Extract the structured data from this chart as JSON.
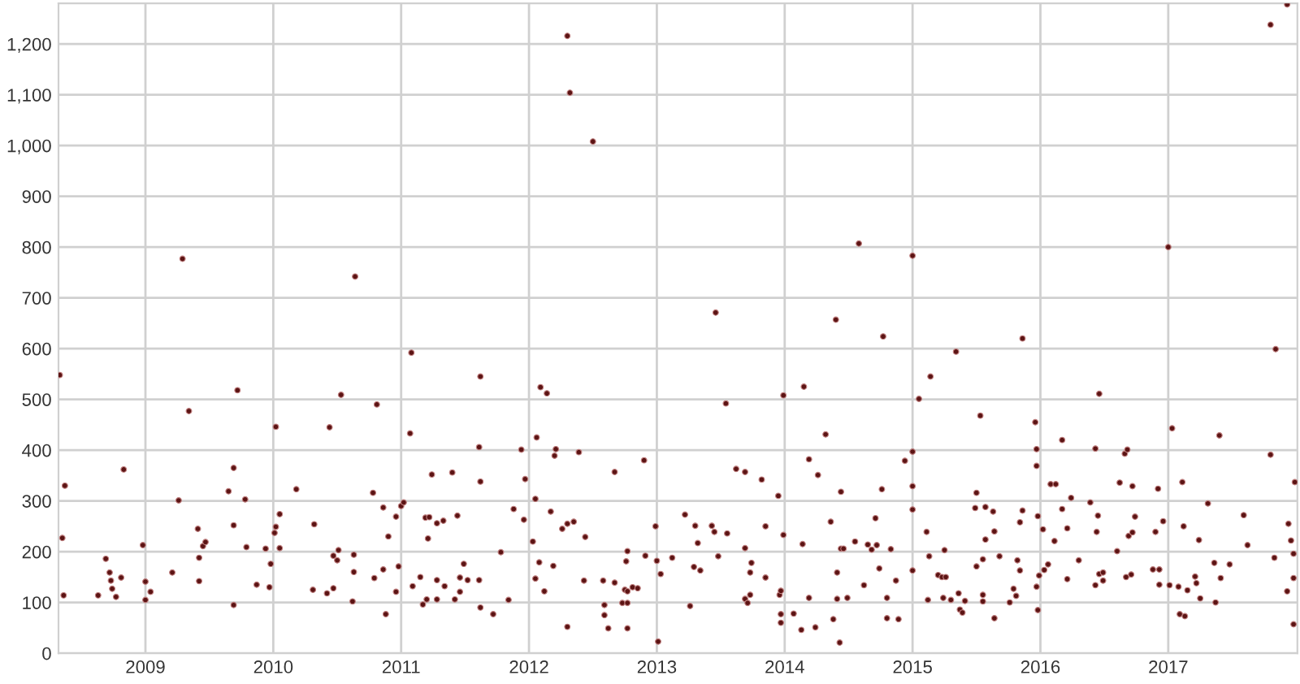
{
  "chart_data": {
    "type": "scatter",
    "marker": "circle",
    "grid": true,
    "color": "#5c1414",
    "x": [
      2008.33,
      2008.37,
      2008.35,
      2008.36,
      2008.63,
      2008.69,
      2008.72,
      2008.73,
      2008.74,
      2008.77,
      2008.81,
      2008.83,
      2008.98,
      2009.0,
      2009.0,
      2009.04,
      2009.21,
      2009.26,
      2009.29,
      2009.34,
      2009.41,
      2009.42,
      2009.42,
      2009.45,
      2009.47,
      2009.65,
      2009.69,
      2009.69,
      2009.69,
      2009.72,
      2009.78,
      2009.79,
      2009.87,
      2009.94,
      2009.97,
      2009.98,
      2010.02,
      2010.01,
      2010.02,
      2010.05,
      2010.05,
      2010.18,
      2010.32,
      2010.31,
      2010.42,
      2010.44,
      2010.47,
      2010.47,
      2010.5,
      2010.51,
      2010.53,
      2010.62,
      2010.63,
      2010.63,
      2010.64,
      2010.78,
      2010.79,
      2010.81,
      2010.86,
      2010.86,
      2010.88,
      2010.9,
      2010.96,
      2010.96,
      2010.98,
      2011.0,
      2011.02,
      2011.08,
      2011.07,
      2011.09,
      2011.15,
      2011.17,
      2011.19,
      2011.2,
      2011.21,
      2011.22,
      2011.24,
      2011.28,
      2011.28,
      2011.28,
      2011.33,
      2011.34,
      2011.4,
      2011.42,
      2011.44,
      2011.46,
      2011.46,
      2011.49,
      2011.52,
      2011.61,
      2011.62,
      2011.61,
      2011.62,
      2011.62,
      2011.72,
      2011.78,
      2011.84,
      2011.88,
      2011.94,
      2011.96,
      2011.97,
      2012.03,
      2012.05,
      2012.05,
      2012.06,
      2012.08,
      2012.09,
      2012.14,
      2012.12,
      2012.17,
      2012.19,
      2012.2,
      2012.21,
      2012.26,
      2012.3,
      2012.3,
      2012.3,
      2012.32,
      2012.35,
      2012.39,
      2012.44,
      2012.43,
      2012.5,
      2012.58,
      2012.59,
      2012.59,
      2012.62,
      2012.67,
      2012.67,
      2012.73,
      2012.75,
      2012.76,
      2012.77,
      2012.77,
      2012.77,
      2012.77,
      2012.81,
      2012.85,
      2012.9,
      2012.91,
      2012.99,
      2013.0,
      2013.01,
      2013.03,
      2013.12,
      2013.22,
      2013.26,
      2013.29,
      2013.3,
      2013.32,
      2013.34,
      2013.43,
      2013.45,
      2013.46,
      2013.48,
      2013.54,
      2013.55,
      2013.62,
      2013.69,
      2013.69,
      2013.69,
      2013.71,
      2013.73,
      2013.73,
      2013.74,
      2013.82,
      2013.85,
      2013.85,
      2013.95,
      2013.96,
      2013.97,
      2013.97,
      2013.97,
      2013.99,
      2013.99,
      2014.07,
      2014.13,
      2014.14,
      2014.15,
      2014.19,
      2014.19,
      2014.24,
      2014.26,
      2014.32,
      2014.36,
      2014.38,
      2014.4,
      2014.41,
      2014.41,
      2014.43,
      2014.44,
      2014.44,
      2014.46,
      2014.49,
      2014.55,
      2014.58,
      2014.62,
      2014.65,
      2014.68,
      2014.71,
      2014.72,
      2014.74,
      2014.76,
      2014.77,
      2014.8,
      2014.8,
      2014.83,
      2014.87,
      2014.89,
      2014.94,
      2015.0,
      2015.0,
      2015.0,
      2015.0,
      2015.0,
      2015.05,
      2015.11,
      2015.13,
      2015.12,
      2015.14,
      2015.2,
      2015.23,
      2015.26,
      2015.25,
      2015.24,
      2015.3,
      2015.34,
      2015.36,
      2015.37,
      2015.39,
      2015.41,
      2015.49,
      2015.5,
      2015.5,
      2015.53,
      2015.55,
      2015.55,
      2015.55,
      2015.57,
      2015.57,
      2015.63,
      2015.64,
      2015.64,
      2015.68,
      2015.76,
      2015.79,
      2015.81,
      2015.82,
      2015.84,
      2015.84,
      2015.86,
      2015.86,
      2015.96,
      2015.97,
      2015.97,
      2015.97,
      2015.98,
      2015.98,
      2015.99,
      2016.02,
      2016.03,
      2016.06,
      2016.08,
      2016.12,
      2016.11,
      2016.17,
      2016.17,
      2016.21,
      2016.21,
      2016.24,
      2016.3,
      2016.39,
      2016.43,
      2016.43,
      2016.44,
      2016.45,
      2016.46,
      2016.46,
      2016.49,
      2016.49,
      2016.6,
      2016.62,
      2016.66,
      2016.68,
      2016.67,
      2016.71,
      2016.69,
      2016.72,
      2016.72,
      2016.74,
      2016.88,
      2016.9,
      2016.92,
      2016.93,
      2016.93,
      2016.96,
      2017.0,
      2017.01,
      2017.03,
      2017.08,
      2017.09,
      2017.11,
      2017.12,
      2017.13,
      2017.15,
      2017.21,
      2017.22,
      2017.24,
      2017.25,
      2017.31,
      2017.36,
      2017.37,
      2017.4,
      2017.41,
      2017.48,
      2017.59,
      2017.62,
      2017.8,
      2017.8,
      2017.83,
      2017.84,
      2017.93,
      2017.93,
      2017.94,
      2017.96,
      2017.98,
      2017.98,
      2017.98,
      2017.99
    ],
    "values": [
      548,
      330,
      227,
      114,
      114,
      186,
      159,
      143,
      127,
      111,
      149,
      362,
      213,
      105,
      141,
      121,
      159,
      301,
      777,
      477,
      245,
      188,
      142,
      211,
      219,
      319,
      365,
      252,
      95,
      518,
      303,
      209,
      135,
      206,
      130,
      176,
      446,
      237,
      249,
      274,
      207,
      323,
      254,
      125,
      118,
      445,
      128,
      192,
      183,
      203,
      509,
      102,
      194,
      160,
      742,
      316,
      148,
      490,
      165,
      287,
      77,
      230,
      269,
      121,
      171,
      290,
      297,
      592,
      433,
      132,
      150,
      96,
      267,
      106,
      226,
      268,
      352,
      256,
      144,
      106,
      261,
      132,
      356,
      106,
      271,
      121,
      149,
      176,
      144,
      144,
      545,
      406,
      338,
      90,
      77,
      199,
      105,
      284,
      401,
      263,
      343,
      220,
      304,
      147,
      425,
      179,
      524,
      512,
      122,
      279,
      172,
      389,
      402,
      245,
      255,
      52,
      1216,
      1104,
      259,
      396,
      229,
      143,
      1008,
      143,
      95,
      75,
      49,
      357,
      139,
      99,
      125,
      181,
      201,
      122,
      99,
      49,
      130,
      128,
      380,
      192,
      250,
      182,
      23,
      156,
      188,
      273,
      93,
      170,
      251,
      217,
      163,
      251,
      239,
      671,
      191,
      492,
      236,
      363,
      357,
      207,
      107,
      99,
      115,
      159,
      178,
      342,
      149,
      250,
      310,
      115,
      123,
      77,
      60,
      508,
      233,
      78,
      46,
      215,
      525,
      382,
      109,
      51,
      351,
      431,
      259,
      67,
      657,
      159,
      107,
      21,
      318,
      206,
      206,
      109,
      220,
      807,
      134,
      214,
      204,
      266,
      213,
      167,
      323,
      624,
      109,
      69,
      205,
      143,
      67,
      379,
      783,
      397,
      329,
      283,
      163,
      501,
      239,
      191,
      105,
      545,
      154,
      150,
      150,
      203,
      109,
      105,
      594,
      118,
      86,
      80,
      103,
      286,
      316,
      171,
      468,
      185,
      115,
      102,
      288,
      224,
      279,
      240,
      69,
      191,
      100,
      127,
      113,
      183,
      163,
      258,
      281,
      620,
      455,
      402,
      369,
      131,
      270,
      85,
      153,
      244,
      164,
      175,
      333,
      333,
      221,
      420,
      284,
      246,
      146,
      306,
      183,
      297,
      403,
      134,
      239,
      271,
      511,
      156,
      159,
      143,
      201,
      336,
      393,
      401,
      150,
      155,
      231,
      238,
      329,
      269,
      165,
      239,
      324,
      165,
      135,
      260,
      800,
      134,
      443,
      131,
      77,
      337,
      250,
      73,
      124,
      151,
      138,
      223,
      108,
      295,
      178,
      100,
      429,
      148,
      175,
      272,
      213,
      1238,
      391,
      188,
      599,
      1278,
      122,
      255,
      222,
      148,
      196,
      57,
      337
    ],
    "xlim": [
      2008.32,
      2018.01
    ],
    "ylim": [
      0,
      1280
    ],
    "xticks": [
      2009,
      2010,
      2011,
      2012,
      2013,
      2014,
      2015,
      2016,
      2017
    ],
    "yticks": [
      0,
      100,
      200,
      300,
      400,
      500,
      600,
      700,
      800,
      900,
      {
        "value": 1000,
        "label": "1,000"
      },
      {
        "value": 1100,
        "label": "1,100"
      },
      {
        "value": 1200,
        "label": "1,200"
      }
    ]
  }
}
